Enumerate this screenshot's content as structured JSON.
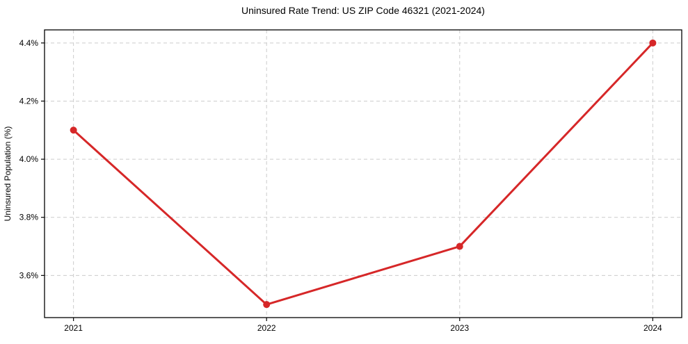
{
  "chart_data": {
    "type": "line",
    "title": "Uninsured Rate Trend: US ZIP Code 46321 (2021-2024)",
    "xlabel": "",
    "ylabel": "Uninsured Population (%)",
    "x": [
      2021,
      2022,
      2023,
      2024
    ],
    "x_tick_labels": [
      "2021",
      "2022",
      "2023",
      "2024"
    ],
    "y_ticks": [
      3.6,
      3.8,
      4.0,
      4.2,
      4.4
    ],
    "y_tick_labels": [
      "3.6%",
      "3.8%",
      "4.0%",
      "4.2%",
      "4.4%"
    ],
    "series": [
      {
        "name": "uninsured-rate",
        "values": [
          4.1,
          3.5,
          3.7,
          4.4
        ],
        "color": "#d62728",
        "marker": "circle",
        "line_width": 3,
        "marker_radius": 5
      }
    ],
    "xlim": [
      2020.85,
      2024.15
    ],
    "ylim": [
      3.455,
      4.445
    ],
    "grid": true,
    "grid_style": "dashed",
    "legend_position": "none",
    "colors": {
      "grid": "#cccccc",
      "axis": "#000000",
      "text": "#000000",
      "background": "#ffffff"
    }
  }
}
